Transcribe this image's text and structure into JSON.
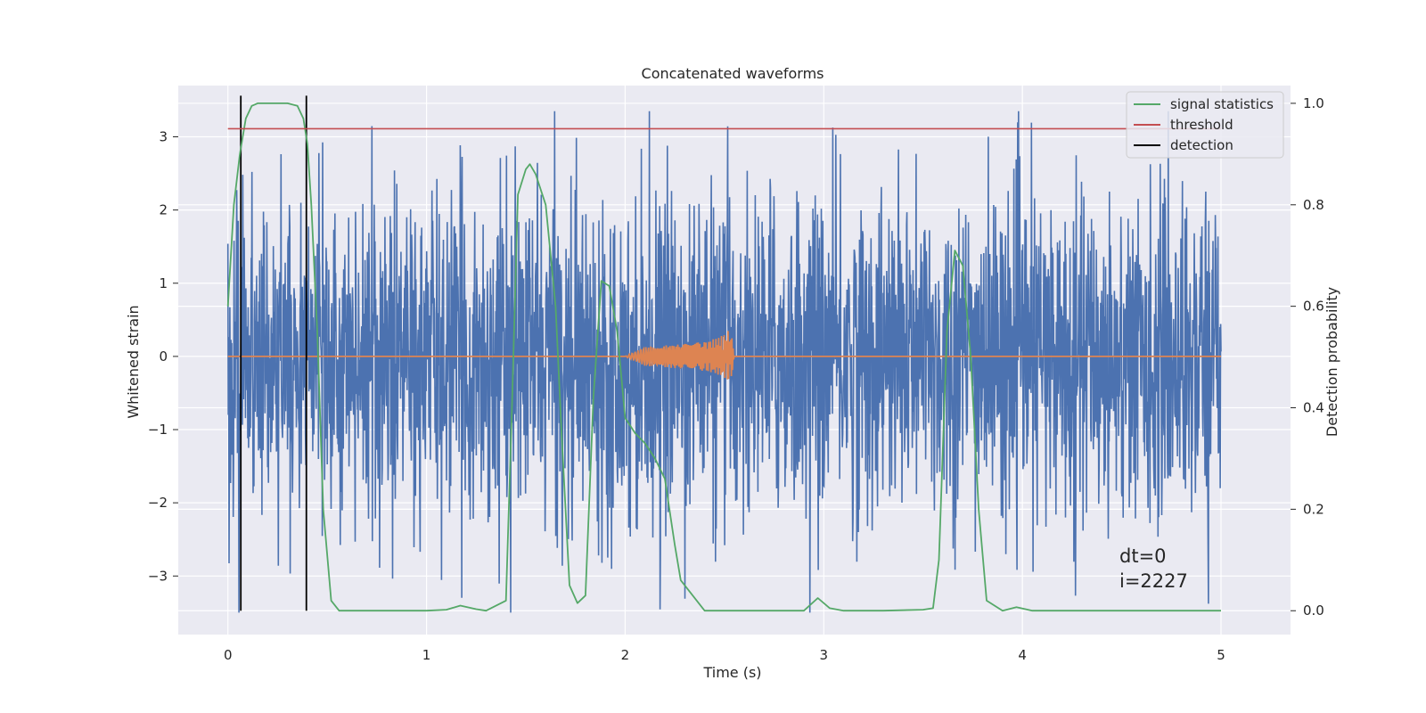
{
  "chart_data": {
    "type": "line",
    "title": "Concatenated waveforms",
    "xlabel": "Time (s)",
    "ylabel": "Whitened strain",
    "y2label": "Detection probability",
    "xlim": [
      -0.25,
      5.35
    ],
    "ylim": [
      -3.8,
      3.7
    ],
    "y2lim": [
      -0.047,
      1.035
    ],
    "xticks": [
      0,
      1,
      2,
      3,
      4,
      5
    ],
    "yticks": [
      -3,
      -2,
      -1,
      0,
      1,
      2,
      3
    ],
    "y2ticks": [
      0.0,
      0.2,
      0.4,
      0.6,
      0.8,
      1.0
    ],
    "xtick_labels": [
      "0",
      "1",
      "2",
      "3",
      "4",
      "5"
    ],
    "ytick_labels": [
      "−3",
      "−2",
      "−1",
      "0",
      "1",
      "2",
      "3"
    ],
    "y2tick_labels": [
      "0.0",
      "0.2",
      "0.4",
      "0.6",
      "0.8",
      "1.0"
    ],
    "grid": true,
    "legend_position": "top-right",
    "legend": [
      "signal statistics",
      "threshold",
      "detection"
    ],
    "colors": {
      "strain": "#4c72b0",
      "waveform": "#dd8452",
      "signal_statistics": "#55a868",
      "threshold": "#c44e52",
      "detection": "#000000",
      "plot_bg": "#eaeaf2",
      "grid": "#ffffff"
    },
    "strain": {
      "x_range": [
        0,
        5
      ],
      "typical_amplitude": 1.1,
      "min": -3.5,
      "max": 3.35
    },
    "waveform": {
      "x": [
        0.0,
        2.0,
        2.1,
        2.2,
        2.3,
        2.4,
        2.45,
        2.5,
        2.53,
        2.55,
        5.0
      ],
      "envelope": [
        0.0,
        0.0,
        0.13,
        0.15,
        0.17,
        0.2,
        0.24,
        0.3,
        0.38,
        0.03,
        0.0
      ]
    },
    "signal_statistics": {
      "axis": "right",
      "x": [
        0.0,
        0.03,
        0.06,
        0.09,
        0.12,
        0.15,
        0.2,
        0.3,
        0.35,
        0.38,
        0.4,
        0.42,
        0.45,
        0.48,
        0.52,
        0.56,
        0.6,
        0.8,
        1.0,
        1.1,
        1.17,
        1.25,
        1.3,
        1.4,
        1.43,
        1.46,
        1.5,
        1.52,
        1.55,
        1.6,
        1.65,
        1.68,
        1.72,
        1.76,
        1.8,
        1.84,
        1.88,
        1.92,
        1.96,
        2.0,
        2.05,
        2.1,
        2.15,
        2.2,
        2.25,
        2.28,
        2.4,
        2.7,
        2.9,
        2.97,
        3.03,
        3.1,
        3.3,
        3.5,
        3.55,
        3.58,
        3.62,
        3.66,
        3.7,
        3.74,
        3.78,
        3.82,
        3.9,
        3.97,
        4.05,
        4.5,
        5.0
      ],
      "y": [
        0.6,
        0.8,
        0.9,
        0.97,
        0.995,
        1.0,
        1.0,
        1.0,
        0.995,
        0.97,
        0.92,
        0.8,
        0.55,
        0.2,
        0.02,
        0.0,
        0.0,
        0.0,
        0.0,
        0.002,
        0.01,
        0.003,
        0.0,
        0.02,
        0.4,
        0.82,
        0.87,
        0.88,
        0.86,
        0.8,
        0.6,
        0.35,
        0.05,
        0.015,
        0.03,
        0.42,
        0.65,
        0.64,
        0.55,
        0.38,
        0.35,
        0.33,
        0.3,
        0.26,
        0.13,
        0.06,
        0.0,
        0.0,
        0.0,
        0.025,
        0.005,
        0.0,
        0.0,
        0.002,
        0.005,
        0.1,
        0.55,
        0.71,
        0.68,
        0.5,
        0.2,
        0.02,
        0.0,
        0.007,
        0.0,
        0.0,
        0.0
      ]
    },
    "threshold": {
      "axis": "right",
      "y": 0.95,
      "x_range": [
        0,
        5.0
      ]
    },
    "detections": [
      0.065,
      0.395
    ],
    "annotations": [
      "dt=0",
      "i=2227"
    ]
  }
}
